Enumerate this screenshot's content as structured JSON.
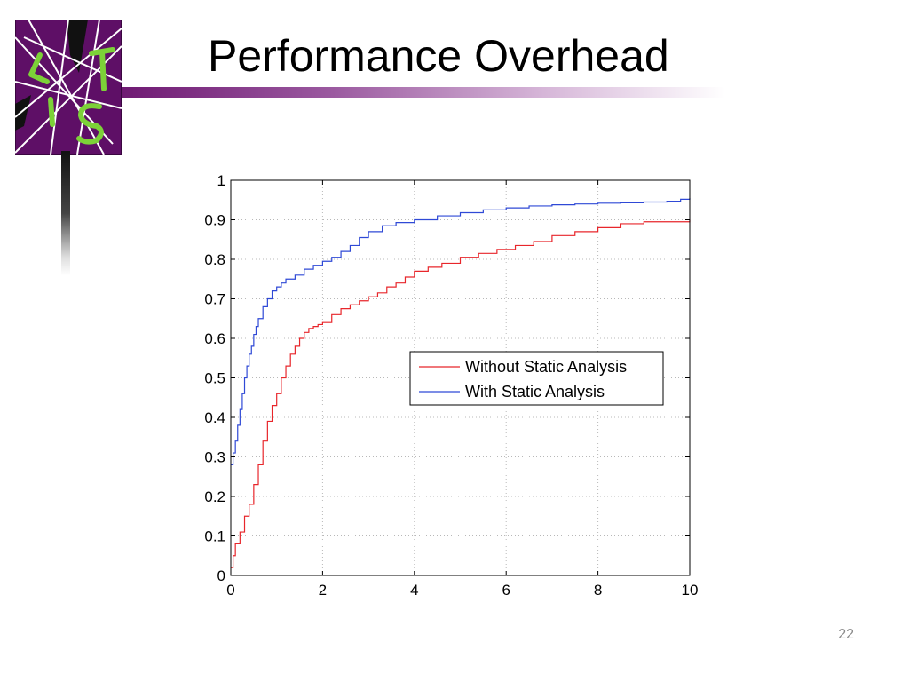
{
  "slide": {
    "title": "Performance Overhead",
    "page_number": "22"
  },
  "logo": {
    "letters": "LTIS",
    "colors": {
      "background": "#5e0f66",
      "letters": "#7cd138",
      "lines": "#ffffff"
    }
  },
  "colors": {
    "title_bar": "#6f1a73"
  },
  "chart_data": {
    "type": "line",
    "title": "",
    "xlabel": "",
    "ylabel": "",
    "xlim": [
      0,
      10
    ],
    "ylim": [
      0,
      1
    ],
    "x_ticks": [
      "0",
      "2",
      "4",
      "6",
      "8",
      "10"
    ],
    "y_ticks": [
      "0",
      "0.1",
      "0.2",
      "0.3",
      "0.4",
      "0.5",
      "0.6",
      "0.7",
      "0.8",
      "0.9",
      "1"
    ],
    "grid": true,
    "legend_position": "center-right",
    "series": [
      {
        "name": "Without Static Analysis",
        "color": "#e8262b",
        "x": [
          0,
          0.05,
          0.1,
          0.2,
          0.3,
          0.4,
          0.5,
          0.6,
          0.7,
          0.8,
          0.9,
          1.0,
          1.1,
          1.2,
          1.3,
          1.4,
          1.5,
          1.6,
          1.7,
          1.8,
          1.9,
          2.0,
          2.2,
          2.4,
          2.6,
          2.8,
          3.0,
          3.2,
          3.4,
          3.6,
          3.8,
          4.0,
          4.3,
          4.6,
          5.0,
          5.4,
          5.8,
          6.2,
          6.6,
          7.0,
          7.5,
          8.0,
          8.5,
          9.0,
          9.5,
          10.0
        ],
        "values": [
          0.02,
          0.05,
          0.08,
          0.11,
          0.15,
          0.18,
          0.23,
          0.28,
          0.34,
          0.39,
          0.43,
          0.46,
          0.5,
          0.53,
          0.56,
          0.58,
          0.6,
          0.615,
          0.625,
          0.63,
          0.635,
          0.64,
          0.66,
          0.675,
          0.685,
          0.695,
          0.705,
          0.715,
          0.73,
          0.74,
          0.755,
          0.77,
          0.78,
          0.79,
          0.805,
          0.815,
          0.825,
          0.835,
          0.845,
          0.86,
          0.87,
          0.88,
          0.89,
          0.895,
          0.895,
          0.9
        ]
      },
      {
        "name": "With Static Analysis",
        "color": "#2f49d6",
        "x": [
          0,
          0.05,
          0.1,
          0.15,
          0.2,
          0.25,
          0.3,
          0.35,
          0.4,
          0.45,
          0.5,
          0.55,
          0.6,
          0.7,
          0.8,
          0.9,
          1.0,
          1.1,
          1.2,
          1.4,
          1.6,
          1.8,
          2.0,
          2.2,
          2.4,
          2.6,
          2.8,
          3.0,
          3.3,
          3.6,
          4.0,
          4.5,
          5.0,
          5.5,
          6.0,
          6.5,
          7.0,
          7.5,
          8.0,
          8.5,
          9.0,
          9.5,
          9.8,
          10.0
        ],
        "values": [
          0.28,
          0.31,
          0.34,
          0.38,
          0.42,
          0.46,
          0.5,
          0.53,
          0.56,
          0.58,
          0.61,
          0.63,
          0.65,
          0.68,
          0.7,
          0.72,
          0.73,
          0.74,
          0.75,
          0.76,
          0.775,
          0.785,
          0.795,
          0.805,
          0.82,
          0.835,
          0.855,
          0.87,
          0.885,
          0.893,
          0.9,
          0.91,
          0.918,
          0.925,
          0.93,
          0.935,
          0.938,
          0.94,
          0.942,
          0.943,
          0.945,
          0.947,
          0.952,
          0.955
        ]
      }
    ]
  }
}
